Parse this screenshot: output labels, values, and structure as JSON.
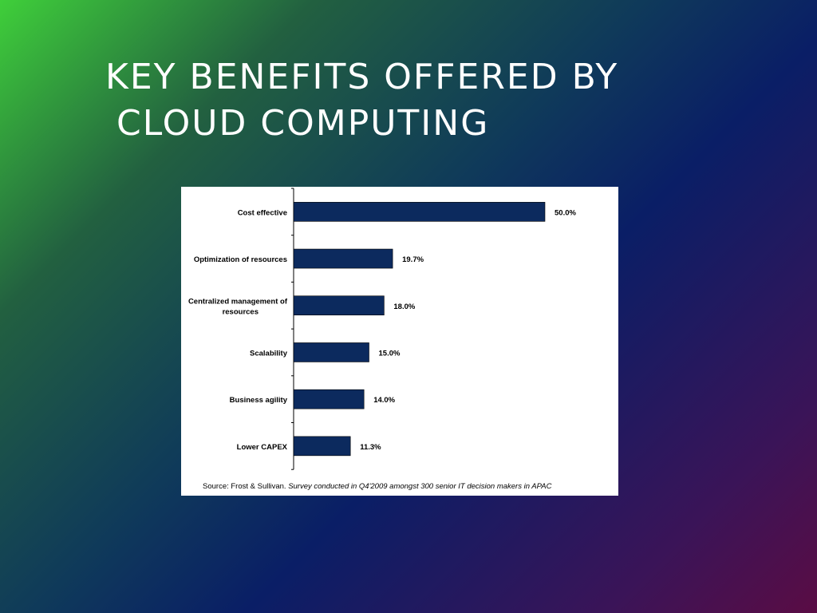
{
  "slide": {
    "title_line1": "KEY BENEFITS OFFERED BY",
    "title_line2": "CLOUD COMPUTING"
  },
  "source": {
    "prefix": "Source: Frost & Sullivan.",
    "detail": "Survey conducted in Q4'2009 amongst 300 senior IT decision makers in APAC"
  },
  "colors": {
    "bar": "#0c2a5e",
    "axis": "#000000",
    "panel": "#ffffff"
  },
  "chart_data": {
    "type": "bar",
    "orientation": "horizontal",
    "categories": [
      [
        "Cost effective"
      ],
      [
        "Optimization of resources"
      ],
      [
        "Centralized management of",
        "resources"
      ],
      [
        "Scalability"
      ],
      [
        "Business agility"
      ],
      [
        "Lower CAPEX"
      ]
    ],
    "values": [
      50.0,
      19.7,
      18.0,
      15.0,
      14.0,
      11.3
    ],
    "value_labels": [
      "50.0%",
      "19.7%",
      "18.0%",
      "15.0%",
      "14.0%",
      "11.3%"
    ],
    "xlim": [
      0,
      50
    ],
    "grid": false,
    "legend": "none"
  }
}
